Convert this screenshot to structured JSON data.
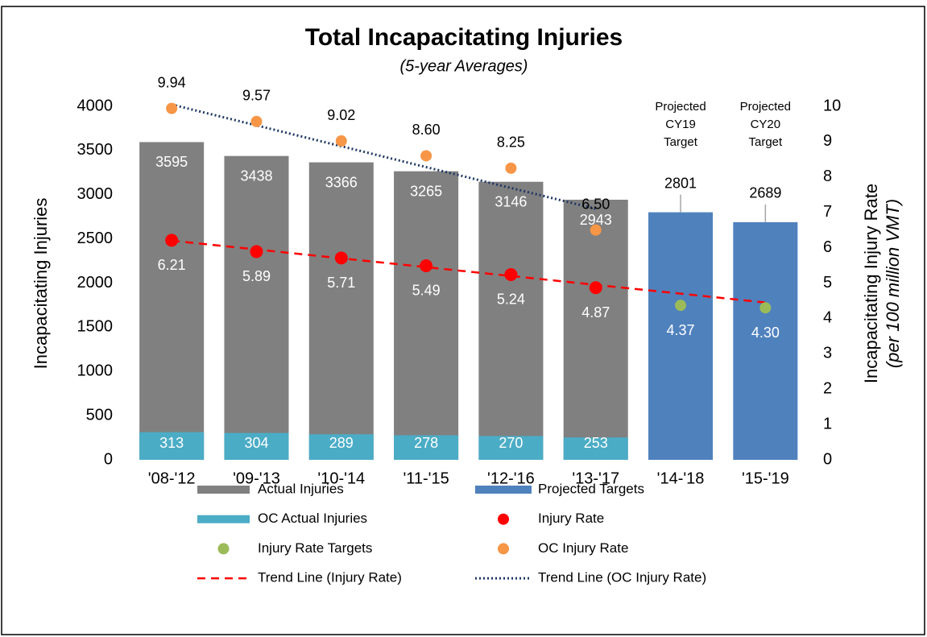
{
  "chart_data": {
    "type": "bar",
    "title": "Total Incapacitating Injuries",
    "subtitle": "(5-year Averages)",
    "y_label": "Incapacitating Injuries",
    "y2_label": [
      "Incapacitating Injury Rate",
      "(per 100 million VMT)"
    ],
    "categories": [
      "'08-'12",
      "'09-'13",
      "'10-'14",
      "'11-'15",
      "'12-'16",
      "'13-'17",
      "'14-'18",
      "'15-'19"
    ],
    "ylim": [
      0,
      4000
    ],
    "yticks": [
      0,
      500,
      1000,
      1500,
      2000,
      2500,
      3000,
      3500,
      4000
    ],
    "y2lim": [
      0,
      10
    ],
    "y2ticks": [
      0,
      1,
      2,
      3,
      4,
      5,
      6,
      7,
      8,
      9,
      10
    ],
    "annotations": [
      {
        "category": 6,
        "lines": [
          "Projected",
          "CY19",
          "Target"
        ]
      },
      {
        "category": 7,
        "lines": [
          "Projected",
          "CY20",
          "Target"
        ]
      }
    ],
    "series": [
      {
        "name": "Actual Injuries",
        "type": "bar",
        "color": "#808080",
        "values": [
          3595,
          3438,
          3366,
          3265,
          3146,
          2943,
          null,
          null
        ]
      },
      {
        "name": "Projected Targets",
        "type": "bar",
        "color": "#4f81bd",
        "values": [
          null,
          null,
          null,
          null,
          null,
          null,
          2801,
          2689
        ]
      },
      {
        "name": "OC Actual Injuries",
        "type": "bar",
        "color": "#4bacc6",
        "values": [
          313,
          304,
          289,
          278,
          270,
          253,
          null,
          null
        ]
      },
      {
        "name": "Injury Rate",
        "type": "point",
        "axis": "y2",
        "color": "#ff0000",
        "values": [
          6.21,
          5.89,
          5.71,
          5.49,
          5.24,
          4.87,
          null,
          null
        ],
        "value_labels": [
          "6.21",
          "5.89",
          "5.71",
          "5.49",
          "5.24",
          "4.87",
          null,
          null
        ]
      },
      {
        "name": "Injury Rate Targets",
        "type": "point",
        "axis": "y2",
        "color": "#9bbb59",
        "values": [
          null,
          null,
          null,
          null,
          null,
          null,
          4.37,
          4.3
        ],
        "value_labels": [
          null,
          null,
          null,
          null,
          null,
          null,
          "4.37",
          "4.30"
        ]
      },
      {
        "name": "OC Injury Rate",
        "type": "point",
        "axis": "y2",
        "color": "#f79646",
        "values": [
          9.94,
          9.57,
          9.02,
          8.6,
          8.25,
          6.5,
          null,
          null
        ],
        "value_labels": [
          "9.94",
          "9.57",
          "9.02",
          "8.60",
          "8.25",
          "6.50",
          null,
          null
        ]
      },
      {
        "name": "Trend Line (Injury Rate)",
        "type": "line",
        "dash": "dashed",
        "axis": "y2",
        "color": "#ff0000",
        "values": [
          6.2,
          5.95,
          5.7,
          5.45,
          5.2,
          4.95,
          4.7,
          4.45
        ]
      },
      {
        "name": "Trend Line (OC Injury Rate)",
        "type": "line",
        "dash": "dotted",
        "axis": "y2",
        "color": "#1f3864",
        "values": [
          10.05,
          9.46,
          8.87,
          8.28,
          7.69,
          7.1,
          null,
          null
        ]
      }
    ]
  }
}
